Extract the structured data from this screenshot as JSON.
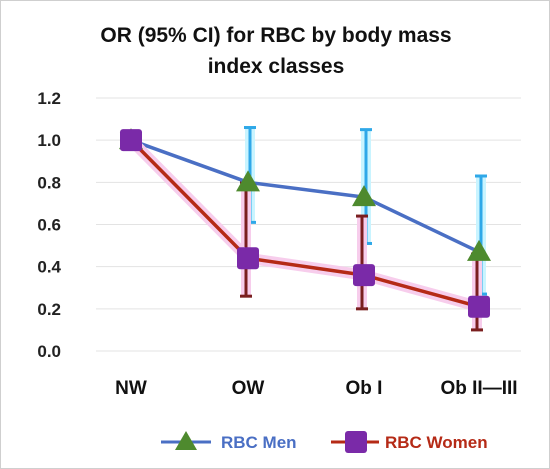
{
  "chart_data": {
    "type": "line",
    "title_lines": [
      "OR (95% CI) for RBC by body mass",
      "index classes"
    ],
    "xlabel": "",
    "ylabel": "",
    "categories": [
      "NW",
      "OW",
      "Ob I",
      "Ob II—III"
    ],
    "ylim": [
      0.0,
      1.2
    ],
    "yticks": [
      "0.0",
      "0.2",
      "0.4",
      "0.6",
      "0.8",
      "1.0",
      "1.2"
    ],
    "grid": true,
    "legend_position": "bottom",
    "series": [
      {
        "name": "RBC Men",
        "color": "#4a6fc4",
        "error_color": "#2fa8e8",
        "marker": "triangle",
        "marker_color": "#4e8a2e",
        "values": [
          1.0,
          0.8,
          0.73,
          0.47
        ],
        "ci_low": [
          1.0,
          0.61,
          0.51,
          0.27
        ],
        "ci_high": [
          1.0,
          1.06,
          1.05,
          0.83
        ]
      },
      {
        "name": "RBC Women",
        "color": "#b52a16",
        "error_color": "#7a1f1f",
        "marker": "square",
        "marker_color": "#7a2aa8",
        "values": [
          1.0,
          0.44,
          0.36,
          0.21
        ],
        "ci_low": [
          1.0,
          0.26,
          0.2,
          0.1
        ],
        "ci_high": [
          1.0,
          0.8,
          0.64,
          0.46
        ]
      }
    ]
  }
}
